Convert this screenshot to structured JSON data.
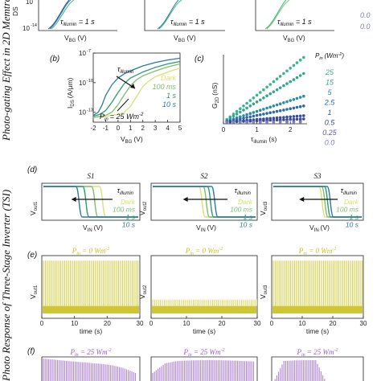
{
  "side_titles": {
    "top": "Photo-gating Effect in 2D Memtransistors",
    "bottom": "Photo Response of Three-Stage Inverter (TSI)"
  },
  "colors": {
    "dark": "#d9e36e",
    "t100": "#7fc06b",
    "t1": "#2e9b6f",
    "t10": "#2c7aa0",
    "bars": "#d8d45a",
    "bars_dark": "#c9c01e",
    "purple": "#b58bd6",
    "p25": "#37b78a",
    "p15": "#34a58e",
    "p5": "#2d8ea1",
    "p2_5": "#2f6aa8",
    "p1": "#3a4e9a",
    "p0_5": "#3e4893",
    "p0_25": "#5a5fa6",
    "p0": "#7d7fc0"
  },
  "top_row": {
    "ylabel": "DS",
    "tick_10": "10",
    "tick_m14": "10",
    "tick_m14_exp": "-14",
    "xlabel": "V",
    "xlabel_sub": "BG",
    "xlabel_unit": "(V)",
    "annotation": "τ",
    "annotation_sub": "illumin",
    "annotation_value": " = 1 s",
    "legend_partial": [
      "0.0",
      "0.0"
    ]
  },
  "panel_b": {
    "label": "(b)",
    "ylabel": "I",
    "ylabel_sub": "DS",
    "ylabel_unit": "(A/μm)",
    "xlabel": "V",
    "xlabel_sub": "BG",
    "xlabel_unit": "(V)",
    "annotation": "τ",
    "annotation_sub": "illumin",
    "pin_label": "P",
    "pin_sub": "in",
    "pin_value": "= 25 Wm",
    "pin_exp": "-2",
    "legend": [
      "Dark",
      "100 ms",
      "1 s",
      "10 s"
    ]
  },
  "panel_c": {
    "label": "(c)",
    "ylabel": "G",
    "ylabel_sub": "2D",
    "ylabel_unit": "(nS)",
    "xlabel": "τ",
    "xlabel_sub": "illumin",
    "xlabel_unit": "(s)",
    "legend_title": "P",
    "legend_title_sub": "in",
    "legend_title_unit": "(Wm",
    "legend_title_exp": "-2",
    "legend_title_close": ")",
    "legend": [
      "25",
      "15",
      "5",
      "2.5",
      "1",
      "0.5",
      "0.25",
      "0.0"
    ]
  },
  "panel_d": {
    "label": "(d)",
    "titles": [
      "S1",
      "S2",
      "S3"
    ],
    "ylabels": [
      "out1",
      "out2",
      "out3"
    ],
    "ylabel_prefix": "V",
    "xlabel": "V",
    "xlabel_sub": "IN",
    "xlabel_unit": "(V)",
    "annotation": "τ",
    "annotation_sub": "illumin",
    "legend": [
      "Dark",
      "100 ms",
      "1 s",
      "10 s"
    ]
  },
  "panel_e": {
    "label": "(e)",
    "title_prefix": "P",
    "title_sub": "in",
    "title_value": " = 0 Wm",
    "title_exp": "-2",
    "ylabels": [
      "out1",
      "out2",
      "out3"
    ],
    "ylabel_prefix": "V",
    "xlabel": "time (s)"
  },
  "panel_f": {
    "label": "(f)",
    "title_prefix": "P",
    "title_sub": "in",
    "title_value": " = 25 Wm",
    "title_exp": "-2"
  },
  "chart_data": [
    {
      "type": "line",
      "panel": "b",
      "x_label": "V_BG (V)",
      "y_label": "I_DS (A/μm)",
      "y_scale": "log",
      "xlim": [
        -2,
        5
      ],
      "ylim": [
        1e-14,
        1e-07
      ],
      "x_ticks": [
        "-2",
        "-1",
        "0",
        "1",
        "2",
        "3",
        "4",
        "5"
      ],
      "y_ticks": [
        "10",
        "10",
        "10"
      ],
      "y_tick_exps": [
        "-7",
        "-10",
        "-13"
      ],
      "series": [
        {
          "name": "Dark",
          "x": [
            -2,
            -1,
            0,
            0.5,
            1,
            1.5,
            2,
            2.5,
            3,
            4,
            5
          ],
          "y": [
            3e-14,
            4e-14,
            6e-14,
            1e-13,
            4e-13,
            4e-12,
            4e-11,
            1.5e-10,
            4e-10,
            1.2e-09,
            3e-09
          ]
        },
        {
          "name": "100 ms",
          "x": [
            -2,
            -1,
            -0.5,
            0,
            0.5,
            1,
            1.5,
            2,
            3,
            4,
            5
          ],
          "y": [
            3e-14,
            5e-14,
            1e-13,
            6e-13,
            6e-12,
            5e-11,
            2e-10,
            5e-10,
            1.5e-09,
            4e-09,
            8e-09
          ]
        },
        {
          "name": "1 s",
          "x": [
            -2,
            -1.5,
            -1,
            -0.5,
            0,
            0.5,
            1,
            2,
            3,
            4,
            5
          ],
          "y": [
            4e-14,
            6e-14,
            1.5e-13,
            1e-12,
            1e-11,
            8e-11,
            3e-10,
            1.2e-09,
            3.5e-09,
            8e-09,
            1.4e-08
          ]
        },
        {
          "name": "10 s",
          "x": [
            -2,
            -1.6,
            -1.3,
            -1,
            -0.5,
            0,
            0.5,
            1,
            2,
            3,
            4,
            5
          ],
          "y": [
            5e-14,
            1e-13,
            5e-13,
            5e-12,
            6e-11,
            3e-10,
            8e-10,
            1.6e-09,
            5e-09,
            1.1e-08,
            2e-08,
            3e-08
          ]
        }
      ]
    },
    {
      "type": "scatter",
      "panel": "c",
      "x_label": "τ_illumin (s)",
      "y_label": "G_2D (nS)",
      "xlim": [
        0,
        2.5
      ],
      "x_ticks": [
        "0",
        "1",
        "2"
      ],
      "legend_placement": "right",
      "series": [
        {
          "name": "25",
          "x": [
            0.1,
            0.2,
            0.3,
            0.4,
            0.5,
            0.6,
            0.7,
            0.8,
            0.9,
            1.0,
            1.1,
            1.2,
            1.3,
            1.4,
            1.5,
            1.6,
            1.7,
            1.8,
            1.9,
            2.0,
            2.1,
            2.2,
            2.3,
            2.4
          ],
          "y": [
            0.2,
            0.4,
            0.6,
            0.8,
            1.0,
            1.2,
            1.4,
            1.6,
            1.8,
            2.0,
            2.2,
            2.4,
            2.6,
            2.8,
            3.0,
            3.2,
            3.4,
            3.6,
            3.8,
            4.0,
            4.2,
            4.4,
            4.6,
            4.8
          ]
        },
        {
          "name": "15",
          "x": [
            0.1,
            0.2,
            0.3,
            0.4,
            0.5,
            0.6,
            0.7,
            0.8,
            0.9,
            1.0,
            1.1,
            1.2,
            1.3,
            1.4,
            1.5,
            1.6,
            1.7,
            1.8,
            1.9,
            2.0,
            2.1,
            2.2,
            2.3,
            2.4
          ],
          "y": [
            0.15,
            0.3,
            0.45,
            0.6,
            0.75,
            0.9,
            1.05,
            1.2,
            1.35,
            1.5,
            1.65,
            1.8,
            1.95,
            2.1,
            2.25,
            2.4,
            2.55,
            2.7,
            2.85,
            3.0,
            3.15,
            3.3,
            3.45,
            3.6
          ]
        },
        {
          "name": "5",
          "x": [
            0.1,
            0.2,
            0.3,
            0.4,
            0.5,
            0.6,
            0.7,
            0.8,
            0.9,
            1.0,
            1.1,
            1.2,
            1.3,
            1.4,
            1.5,
            1.6,
            1.7,
            1.8,
            1.9,
            2.0,
            2.1,
            2.2,
            2.3,
            2.4
          ],
          "y": [
            0.08,
            0.16,
            0.24,
            0.32,
            0.4,
            0.48,
            0.56,
            0.64,
            0.72,
            0.8,
            0.88,
            0.96,
            1.04,
            1.12,
            1.2,
            1.28,
            1.36,
            1.44,
            1.52,
            1.6,
            1.68,
            1.76,
            1.84,
            1.92
          ]
        },
        {
          "name": "2.5",
          "x": [
            0.1,
            0.2,
            0.3,
            0.4,
            0.5,
            0.6,
            0.7,
            0.8,
            0.9,
            1.0,
            1.1,
            1.2,
            1.3,
            1.4,
            1.5,
            1.6,
            1.7,
            1.8,
            1.9,
            2.0,
            2.1,
            2.2,
            2.3,
            2.4
          ],
          "y": [
            0.05,
            0.1,
            0.15,
            0.2,
            0.25,
            0.3,
            0.35,
            0.4,
            0.45,
            0.5,
            0.55,
            0.6,
            0.65,
            0.7,
            0.75,
            0.8,
            0.85,
            0.9,
            0.95,
            1.0,
            1.05,
            1.1,
            1.15,
            1.2
          ]
        },
        {
          "name": "1",
          "x": [
            0.1,
            0.2,
            0.3,
            0.4,
            0.5,
            0.6,
            0.7,
            0.8,
            0.9,
            1.0,
            1.1,
            1.2,
            1.3,
            1.4,
            1.5,
            1.6,
            1.7,
            1.8,
            1.9,
            2.0,
            2.1,
            2.2,
            2.3,
            2.4
          ],
          "y": [
            0.02,
            0.04,
            0.06,
            0.08,
            0.1,
            0.12,
            0.14,
            0.16,
            0.18,
            0.2,
            0.22,
            0.24,
            0.26,
            0.28,
            0.3,
            0.32,
            0.34,
            0.36,
            0.38,
            0.4,
            0.42,
            0.44,
            0.46,
            0.48
          ]
        },
        {
          "name": "0.5",
          "x": [
            0.1,
            0.2,
            0.3,
            0.4,
            0.5,
            0.6,
            0.7,
            0.8,
            0.9,
            1.0,
            1.1,
            1.2,
            1.3,
            1.4,
            1.5,
            1.6,
            1.7,
            1.8,
            1.9,
            2.0,
            2.1,
            2.2,
            2.3,
            2.4
          ],
          "y": [
            0.01,
            0.02,
            0.03,
            0.04,
            0.05,
            0.06,
            0.07,
            0.08,
            0.09,
            0.1,
            0.11,
            0.12,
            0.13,
            0.14,
            0.15,
            0.16,
            0.17,
            0.18,
            0.19,
            0.2,
            0.21,
            0.22,
            0.23,
            0.24
          ]
        },
        {
          "name": "0.25",
          "x": [
            0.1,
            0.3,
            0.5,
            0.7,
            0.9,
            1.1,
            1.3,
            1.5,
            1.7,
            1.9,
            2.1,
            2.3
          ],
          "y": [
            0.005,
            0.01,
            0.015,
            0.02,
            0.025,
            0.03,
            0.035,
            0.04,
            0.045,
            0.05,
            0.055,
            0.06
          ]
        },
        {
          "name": "0.0",
          "x": [
            0.1,
            0.3,
            0.5,
            0.7,
            0.9,
            1.1,
            1.3,
            1.5,
            1.7,
            1.9,
            2.1,
            2.3
          ],
          "y": [
            0,
            0,
            0,
            0,
            0,
            0,
            0,
            0,
            0,
            0,
            0,
            0
          ]
        }
      ]
    },
    {
      "type": "line",
      "panel": "d",
      "note_subplots": [
        "S1",
        "S2",
        "S3"
      ],
      "series_names": [
        "Dark",
        "100 ms",
        "1 s",
        "10 s"
      ],
      "switching_fraction": {
        "S1": [
          0.62,
          0.54,
          0.45,
          0.38
        ],
        "S2": [
          0.48,
          0.52,
          0.56,
          0.6
        ],
        "S3": [
          0.55,
          0.58,
          0.61,
          0.64
        ]
      }
    },
    {
      "type": "bar",
      "panel": "e",
      "xlabel": "time (s)",
      "x_ticks": [
        "0",
        "10",
        "20",
        "30"
      ],
      "xlim": [
        0,
        30
      ],
      "subplots": [
        "out1",
        "out2",
        "out3"
      ],
      "high_level_fraction": [
        0.92,
        0.0,
        0.92
      ],
      "low_level_fraction": [
        0.12,
        0.12,
        0.12
      ]
    },
    {
      "type": "bar",
      "panel": "f",
      "subplots": [
        "1",
        "2",
        "3"
      ],
      "envelope_fraction": {
        "1": [
          1.0,
          0.95,
          0.9,
          0.86,
          0.82,
          0.78,
          0.72,
          0.6,
          0.4
        ],
        "2": [
          0.4,
          0.8,
          0.9,
          0.92,
          0.93,
          0.93,
          0.92,
          0.9,
          0.88
        ],
        "3": [
          0.0,
          0.9,
          0.92,
          0.93,
          0.93,
          0.0,
          0.0,
          0.0,
          0.0
        ]
      }
    }
  ]
}
